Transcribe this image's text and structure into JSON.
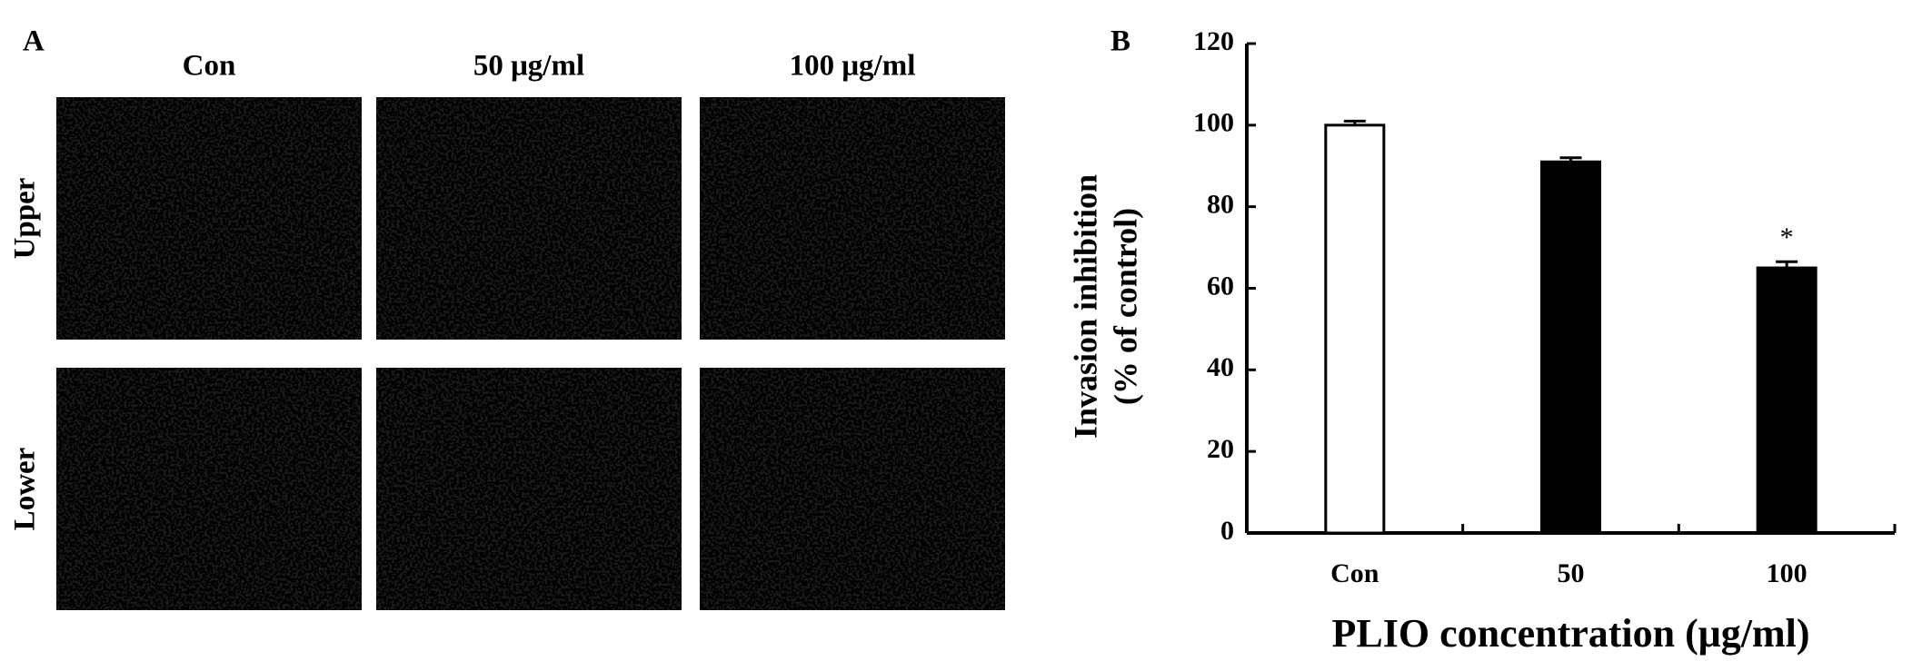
{
  "panel_a": {
    "label": "A",
    "columns": [
      "Con",
      "50 μg/ml",
      "100 μg/ml"
    ],
    "rows": [
      "Upper",
      "Lower"
    ]
  },
  "chart_data": {
    "type": "bar",
    "panel": "B",
    "xlabel": "PLIO concentration (μg/ml)",
    "ylabel": [
      "Invasion inhibition",
      "(% of control)"
    ],
    "categories": [
      "Con",
      "50",
      "100"
    ],
    "values": [
      100,
      91,
      65
    ],
    "errors": [
      1,
      1,
      1.5
    ],
    "colors": [
      "#ffffff",
      "#000000",
      "#000000"
    ],
    "annotations": [
      null,
      null,
      "*"
    ],
    "ylim": [
      0,
      120
    ],
    "yticks": [
      0,
      20,
      40,
      60,
      80,
      100,
      120
    ],
    "grid": false
  }
}
